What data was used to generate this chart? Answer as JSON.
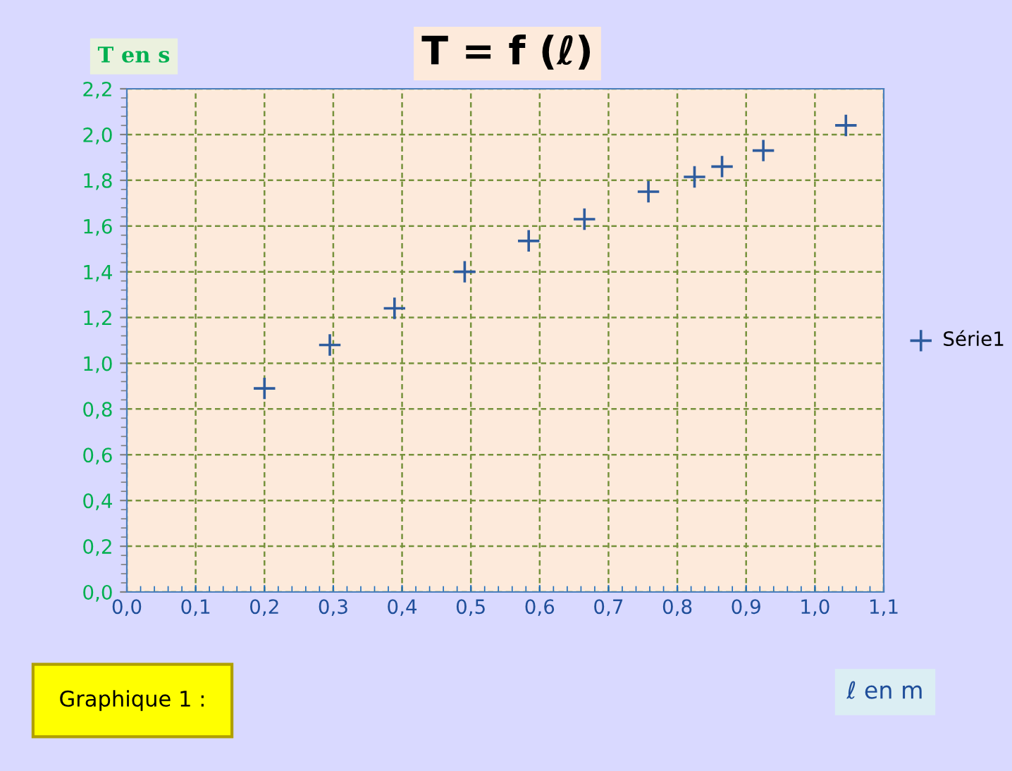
{
  "chart_data": {
    "type": "scatter",
    "title": "T = f (ℓ)",
    "xlabel": "ℓ en m",
    "ylabel": "T en s",
    "annotations": [
      "Graphique 1 :"
    ],
    "x": [
      0.2,
      0.295,
      0.389,
      0.491,
      0.584,
      0.665,
      0.758,
      0.825,
      0.865,
      0.925,
      1.045
    ],
    "series": [
      {
        "name": "Série1",
        "color": "#2e5c9e",
        "values": [
          0.89,
          1.08,
          1.24,
          1.4,
          1.535,
          1.63,
          1.75,
          1.815,
          1.86,
          1.93,
          2.04
        ]
      }
    ],
    "marker": "cross",
    "grid": true,
    "legend": "right",
    "xlim": [
      0,
      1.1
    ],
    "ylim": [
      0,
      2.2
    ],
    "xticks": [
      {
        "value": 0,
        "label": "0,0"
      },
      {
        "value": 0.1,
        "label": "0,1"
      },
      {
        "value": 0.2,
        "label": "0,2"
      },
      {
        "value": 0.3,
        "label": "0,3"
      },
      {
        "value": 0.4,
        "label": "0,4"
      },
      {
        "value": 0.5,
        "label": "0,5"
      },
      {
        "value": 0.6,
        "label": "0,6"
      },
      {
        "value": 0.7,
        "label": "0,7"
      },
      {
        "value": 0.8,
        "label": "0,8"
      },
      {
        "value": 0.9,
        "label": "0,9"
      },
      {
        "value": 1.0,
        "label": "1,0"
      },
      {
        "value": 1.1,
        "label": "1,1"
      }
    ],
    "yticks": [
      {
        "value": 0,
        "label": "0,0"
      },
      {
        "value": 0.2,
        "label": "0,2"
      },
      {
        "value": 0.4,
        "label": "0,4"
      },
      {
        "value": 0.6,
        "label": "0,6"
      },
      {
        "value": 0.8,
        "label": "0,8"
      },
      {
        "value": 1.0,
        "label": "1,0"
      },
      {
        "value": 1.2,
        "label": "1,2"
      },
      {
        "value": 1.4,
        "label": "1,4"
      },
      {
        "value": 1.6,
        "label": "1,6"
      },
      {
        "value": 1.8,
        "label": "1,8"
      },
      {
        "value": 2.0,
        "label": "2,0"
      },
      {
        "value": 2.2,
        "label": "2,2"
      }
    ]
  }
}
